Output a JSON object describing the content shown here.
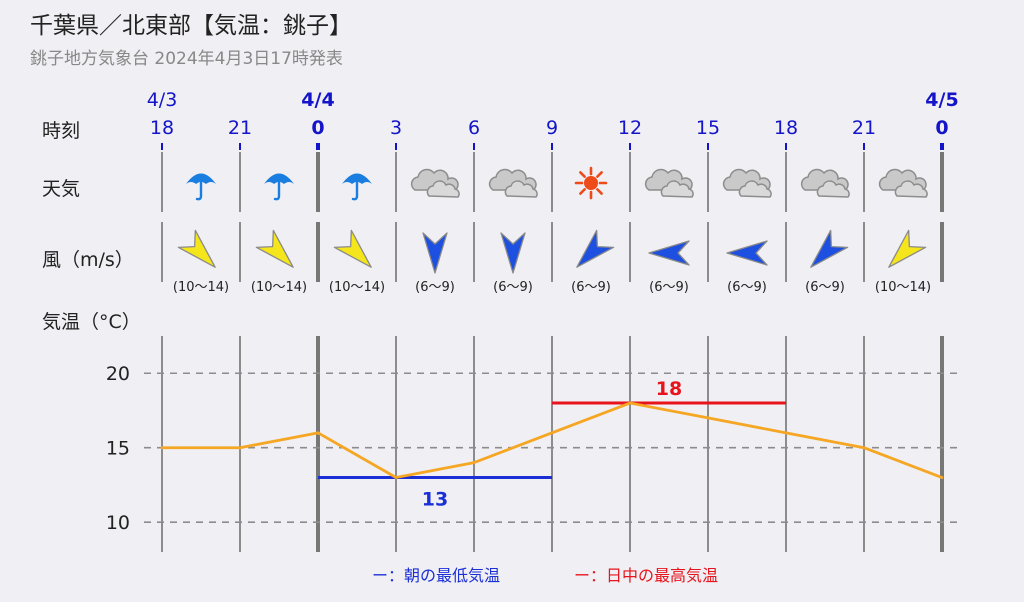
{
  "header": {
    "title": "千葉県／北東部【気温：銚子】",
    "subtitle": "銚子地方気象台 2024年4月3日17時発表"
  },
  "labels": {
    "time": "時刻",
    "weather": "天気",
    "wind": "風（m/s）",
    "temp": "気温（°C）"
  },
  "legend": {
    "min_label": "ー：朝の最低気温",
    "max_label": "ー：日中の最高気温",
    "min_color": "#1b2fd6",
    "max_color": "#e8141b"
  },
  "dates": [
    {
      "label": "4/3",
      "slot": 0,
      "bold": false
    },
    {
      "label": "4/4",
      "slot": 2,
      "bold": true
    },
    {
      "label": "4/5",
      "slot": 10,
      "bold": true
    }
  ],
  "hours": [
    "18",
    "21",
    "0",
    "3",
    "6",
    "9",
    "12",
    "15",
    "18",
    "21",
    "0"
  ],
  "weather": [
    "umbrella-icon",
    "umbrella-icon",
    "umbrella-icon",
    "cloud-icon",
    "cloud-icon",
    "sun-icon",
    "cloud-icon",
    "cloud-icon",
    "cloud-icon",
    "cloud-icon"
  ],
  "wind": [
    {
      "dir": "NW",
      "speed": "(10〜14)",
      "color": "#f5e51b"
    },
    {
      "dir": "NW",
      "speed": "(10〜14)",
      "color": "#f5e51b"
    },
    {
      "dir": "NW",
      "speed": "(10〜14)",
      "color": "#f5e51b"
    },
    {
      "dir": "N",
      "speed": "(6〜9)",
      "color": "#1d4fe0"
    },
    {
      "dir": "N",
      "speed": "(6〜9)",
      "color": "#1d4fe0"
    },
    {
      "dir": "NE",
      "speed": "(6〜9)",
      "color": "#1d4fe0"
    },
    {
      "dir": "E",
      "speed": "(6〜9)",
      "color": "#1d4fe0"
    },
    {
      "dir": "E",
      "speed": "(6〜9)",
      "color": "#1d4fe0"
    },
    {
      "dir": "NE",
      "speed": "(6〜9)",
      "color": "#1d4fe0"
    },
    {
      "dir": "NE",
      "speed": "(10〜14)",
      "color": "#f5e51b"
    }
  ],
  "chart_data": {
    "type": "line",
    "x": [
      "18",
      "21",
      "0",
      "3",
      "6",
      "9",
      "12",
      "15",
      "18",
      "21",
      "0"
    ],
    "series": [
      {
        "values": [
          15,
          15,
          16,
          13,
          14,
          16,
          18,
          17,
          16,
          15,
          13
        ],
        "color": "#f5a623"
      }
    ],
    "min_temp": {
      "value": 13,
      "label": "13",
      "from": "0",
      "to": "9"
    },
    "max_temp": {
      "value": 18,
      "label": "18",
      "from": "9",
      "to": "18"
    },
    "yticks": [
      "20",
      "15",
      "10"
    ],
    "ylim": [
      8,
      22.5
    ],
    "grid": true
  }
}
